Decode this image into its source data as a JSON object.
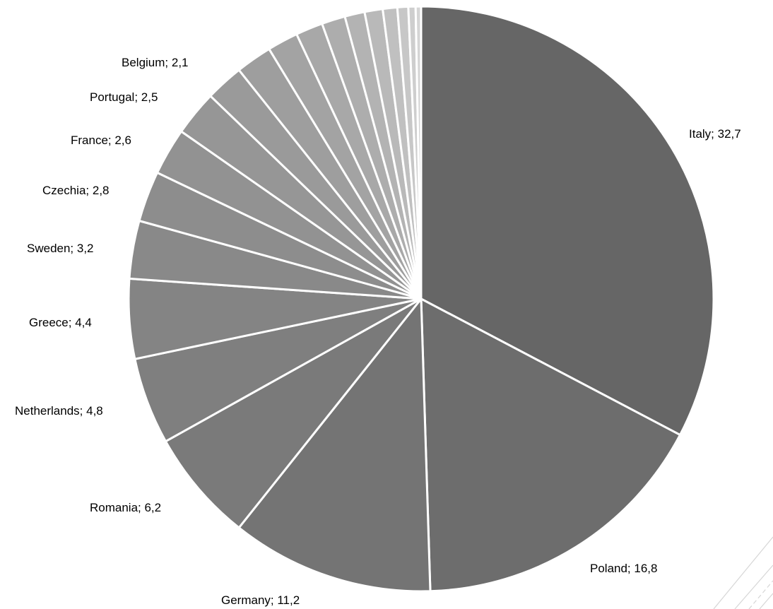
{
  "chart_data": {
    "type": "pie",
    "start_angle_deg": 0,
    "direction": "clockwise",
    "labeled_slices": [
      {
        "label": "Italy",
        "value": 32.7,
        "label_text": "Italy; 32,7",
        "color": "#666666"
      },
      {
        "label": "Poland",
        "value": 16.8,
        "label_text": "Poland; 16,8",
        "color": "#6d6d6d"
      },
      {
        "label": "Germany",
        "value": 11.2,
        "label_text": "Germany; 11,2",
        "color": "#747474"
      },
      {
        "label": "Romania",
        "value": 6.2,
        "label_text": "Romania; 6,2",
        "color": "#7a7a7a"
      },
      {
        "label": "Netherlands",
        "value": 4.8,
        "label_text": "Netherlands; 4,8",
        "color": "#7f7f7f"
      },
      {
        "label": "Greece",
        "value": 4.4,
        "label_text": "Greece; 4,4",
        "color": "#848484"
      },
      {
        "label": "Sweden",
        "value": 3.2,
        "label_text": "Sweden; 3,2",
        "color": "#898989"
      },
      {
        "label": "Czechia",
        "value": 2.8,
        "label_text": "Czechia; 2,8",
        "color": "#8d8d8d"
      },
      {
        "label": "France",
        "value": 2.6,
        "label_text": "France; 2,6",
        "color": "#929292"
      },
      {
        "label": "Portugal",
        "value": 2.5,
        "label_text": "Portugal; 2,5",
        "color": "#969696"
      },
      {
        "label": "Belgium",
        "value": 2.1,
        "label_text": "Belgium; 2,1",
        "color": "#9a9a9a"
      }
    ],
    "unlabeled_values": [
      2.0,
      1.7,
      1.5,
      1.3,
      1.1,
      1.0,
      0.8,
      0.6,
      0.4,
      0.3
    ],
    "unlabeled_colors": [
      "#9e9e9e",
      "#a3a3a3",
      "#a8a8a8",
      "#adadad",
      "#b3b3b3",
      "#b9b9b9",
      "#c0c0c0",
      "#c7c7c7",
      "#cecece",
      "#d5d5d5"
    ]
  }
}
